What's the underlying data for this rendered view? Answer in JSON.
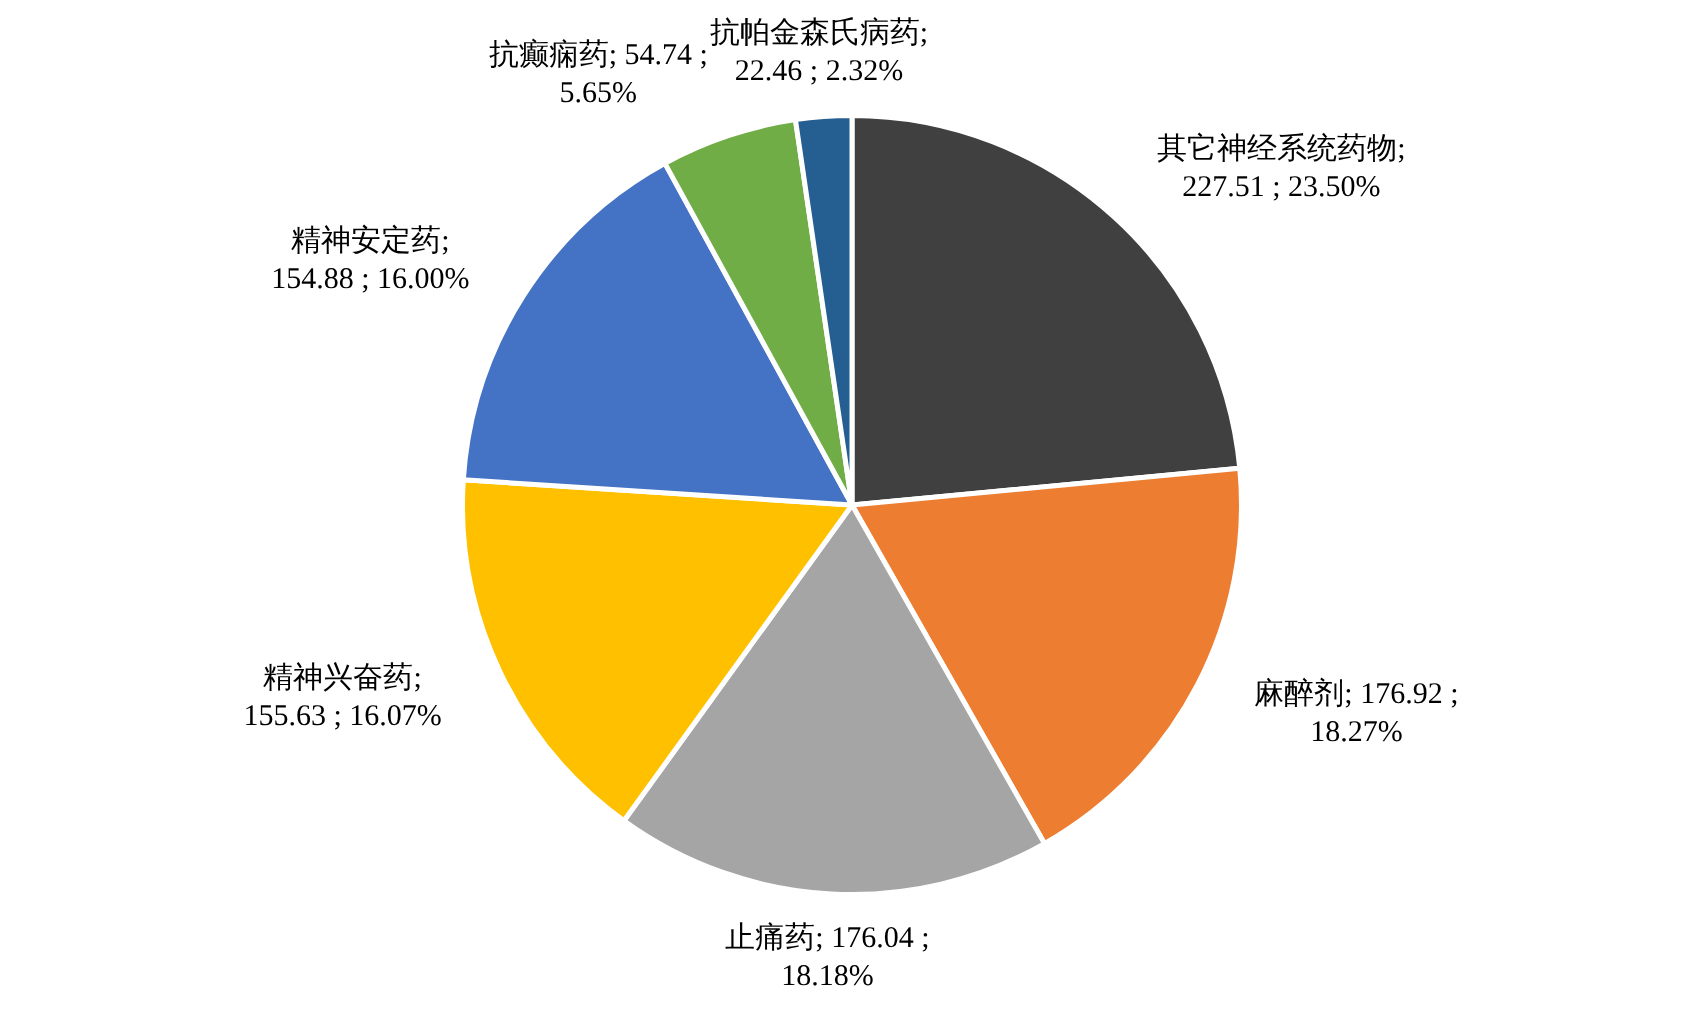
{
  "chart_data": {
    "type": "pie",
    "categories": [
      "其它神经系统药物",
      "麻醉剂",
      "止痛药",
      "精神兴奋药",
      "精神安定药",
      "抗癫痫药",
      "抗帕金森氏病药"
    ],
    "values": [
      227.51,
      176.92,
      176.04,
      155.63,
      154.88,
      54.74,
      22.46
    ],
    "colors": [
      "#404040",
      "#ed7d31",
      "#a5a5a5",
      "#ffc000",
      "#4472c4",
      "#70ad47",
      "#255e91"
    ],
    "value_labels": [
      "; 227.51 ; 23.50%",
      "; 176.92 ; 18.27%",
      "; 176.04 ; 18.18%",
      "; 155.63 ; 16.07%",
      "; 154.88 ; 16.00%",
      "; 54.74 ; 5.65%",
      "; 22.46 ; 2.32%"
    ],
    "legend": false
  }
}
